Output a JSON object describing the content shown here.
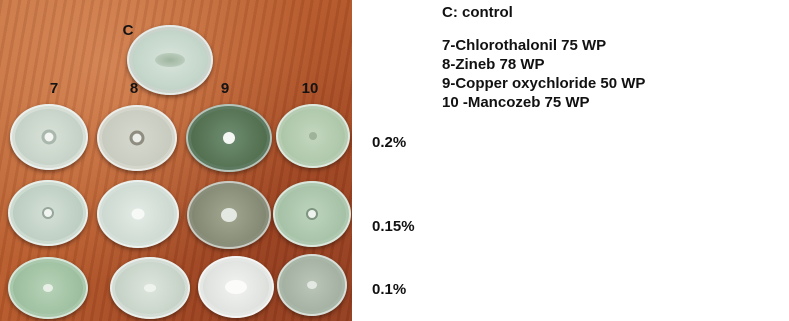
{
  "control_label": "C",
  "column_labels": [
    "7",
    "8",
    "9",
    "10"
  ],
  "legend": {
    "control": "C: control",
    "items": [
      "7-Chlorothalonil 75 WP",
      "8-Zineb 78 WP",
      "9-Copper oxychloride 50 WP",
      "10 -Mancozeb 75 WP"
    ]
  },
  "concentrations": [
    "0.2%",
    "0.15%",
    "0.1%"
  ]
}
